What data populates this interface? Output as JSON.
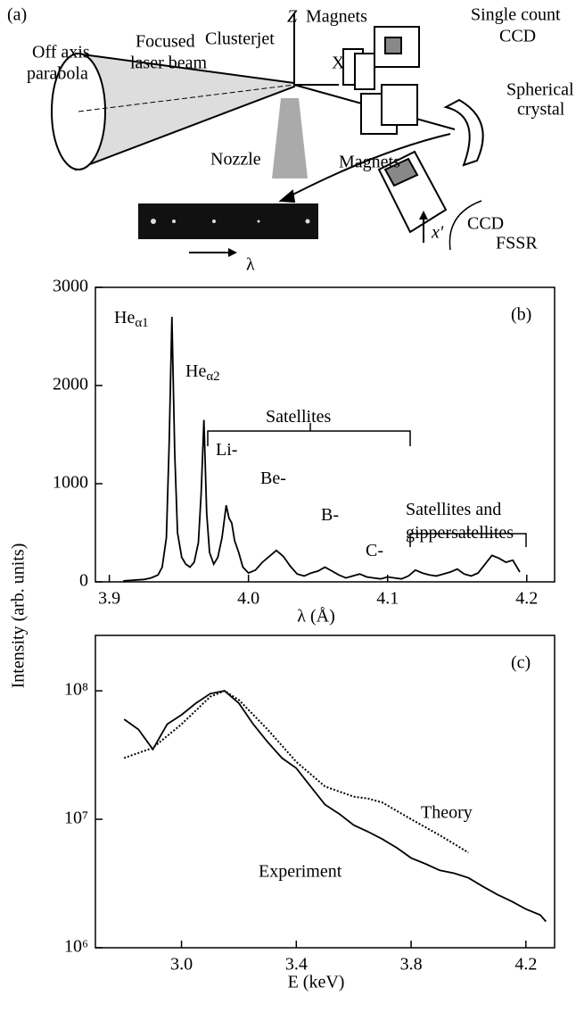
{
  "diagram": {
    "panel": "(a)",
    "labels": [
      "Off axis",
      "parabola",
      "Focused",
      "laser beam",
      "Clusterjet",
      "Z",
      "Magnets",
      "Single count",
      "CCD",
      "X",
      "Spherical",
      "crystal",
      "Nozzle",
      "Magnets",
      "CCD",
      "FSSR",
      "λ",
      "x′"
    ]
  },
  "ylabel": "Intensity (arb. units)",
  "chart_data": [
    {
      "type": "line",
      "panel": "(b)",
      "xlabel": "λ (Å)",
      "log": false,
      "xlim": [
        3.89,
        4.22
      ],
      "xticks": [
        3.9,
        {
          "value": 4,
          "label": "4.0"
        },
        4.1,
        4.2
      ],
      "ylim": [
        0,
        3000
      ],
      "yticks": [
        0,
        1000,
        2000,
        3000
      ],
      "series": [
        {
          "color": "#000000",
          "x": [
            3.91,
            3.915,
            3.92,
            3.925,
            3.93,
            3.935,
            3.938,
            3.941,
            3.943,
            3.945,
            3.947,
            3.949,
            3.952,
            3.955,
            3.958,
            3.961,
            3.964,
            3.966,
            3.968,
            3.97,
            3.972,
            3.975,
            3.978,
            3.981,
            3.984,
            3.986,
            3.988,
            3.99,
            3.993,
            3.996,
            4.0,
            4.005,
            4.01,
            4.015,
            4.02,
            4.025,
            4.03,
            4.035,
            4.04,
            4.045,
            4.05,
            4.055,
            4.06,
            4.065,
            4.07,
            4.075,
            4.08,
            4.085,
            4.09,
            4.095,
            4.1,
            4.105,
            4.11,
            4.115,
            4.12,
            4.125,
            4.13,
            4.135,
            4.14,
            4.145,
            4.15,
            4.155,
            4.16,
            4.165,
            4.17,
            4.175,
            4.18,
            4.185,
            4.19,
            4.195
          ],
          "values": [
            10,
            15,
            20,
            25,
            40,
            70,
            150,
            450,
            1400,
            2700,
            1300,
            500,
            250,
            180,
            150,
            200,
            400,
            900,
            1650,
            700,
            300,
            180,
            250,
            450,
            780,
            650,
            600,
            420,
            300,
            150,
            90,
            120,
            200,
            260,
            320,
            260,
            160,
            80,
            60,
            90,
            110,
            150,
            110,
            70,
            40,
            60,
            80,
            50,
            40,
            30,
            50,
            40,
            30,
            60,
            120,
            90,
            70,
            60,
            80,
            100,
            130,
            80,
            60,
            90,
            180,
            270,
            240,
            200,
            220,
            100
          ]
        }
      ],
      "annotations": [
        {
          "text": "He",
          "sub": "α1"
        },
        {
          "text": "He",
          "sub": "α2"
        },
        {
          "text": "Satellites"
        },
        {
          "text": "Li-"
        },
        {
          "text": "Be-"
        },
        {
          "text": "B-"
        },
        {
          "text": "C-"
        },
        {
          "text": "Satellites and"
        },
        {
          "text": "gippersatellites"
        }
      ]
    },
    {
      "type": "line",
      "panel": "(c)",
      "xlabel": "E (keV)",
      "log": true,
      "xlim": [
        2.7,
        4.3
      ],
      "xticks": [
        {
          "value": 3,
          "label": "3.0"
        },
        3.4,
        3.8,
        4.2
      ],
      "ylim": [
        1000000,
        270000000
      ],
      "yticks": [
        {
          "value": 1000000,
          "label": "10⁶"
        },
        {
          "value": 10000000,
          "label": "10⁷"
        },
        {
          "value": 100000000,
          "label": "10⁸"
        }
      ],
      "series": [
        {
          "name": "Experiment",
          "color": "#000000",
          "dash": false,
          "x": [
            2.8,
            2.85,
            2.9,
            2.95,
            3.0,
            3.05,
            3.1,
            3.15,
            3.2,
            3.25,
            3.3,
            3.35,
            3.4,
            3.45,
            3.5,
            3.55,
            3.6,
            3.65,
            3.7,
            3.75,
            3.8,
            3.85,
            3.9,
            3.95,
            4.0,
            4.05,
            4.1,
            4.15,
            4.2,
            4.25,
            4.27
          ],
          "values": [
            60000000,
            50000000,
            35000000,
            55000000,
            65000000,
            80000000,
            95000000,
            100000000,
            80000000,
            55000000,
            40000000,
            30000000,
            25000000,
            18000000,
            13000000,
            11000000,
            9000000,
            8000000,
            7000000,
            6000000,
            5000000,
            4500000,
            4000000,
            3800000,
            3500000,
            3000000,
            2600000,
            2300000,
            2000000,
            1800000,
            1600000
          ]
        },
        {
          "name": "Theory",
          "color": "#000000",
          "dash": true,
          "x": [
            2.8,
            2.9,
            3.0,
            3.1,
            3.15,
            3.2,
            3.3,
            3.4,
            3.5,
            3.6,
            3.65,
            3.7,
            3.8,
            3.9,
            4.0
          ],
          "values": [
            30000000,
            36000000,
            55000000,
            90000000,
            100000000,
            85000000,
            50000000,
            28000000,
            18000000,
            15000000,
            14500000,
            13500000,
            10000000,
            7500000,
            5500000
          ]
        }
      ]
    }
  ]
}
